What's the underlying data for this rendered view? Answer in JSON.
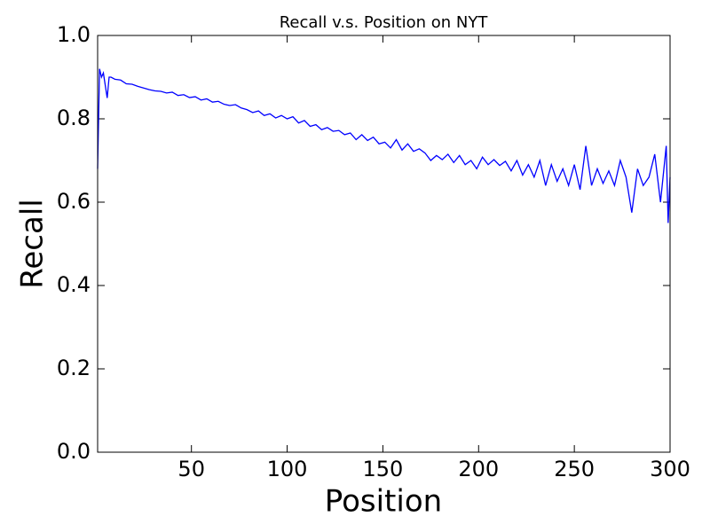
{
  "chart_data": {
    "type": "line",
    "title": "Recall v.s. Position on NYT",
    "x_label": "Position",
    "y_label": "Recall",
    "x": [
      1,
      2,
      3,
      4,
      5,
      6,
      7,
      8,
      10,
      13,
      16,
      19,
      22,
      25,
      28,
      31,
      34,
      37,
      40,
      43,
      46,
      49,
      52,
      55,
      58,
      61,
      64,
      67,
      70,
      73,
      76,
      79,
      82,
      85,
      88,
      91,
      94,
      97,
      100,
      103,
      106,
      109,
      112,
      115,
      118,
      121,
      124,
      127,
      130,
      133,
      136,
      139,
      142,
      145,
      148,
      151,
      154,
      157,
      160,
      163,
      166,
      169,
      172,
      175,
      178,
      181,
      184,
      187,
      190,
      193,
      196,
      199,
      202,
      205,
      208,
      211,
      214,
      217,
      220,
      223,
      226,
      229,
      232,
      235,
      238,
      241,
      244,
      247,
      250,
      253,
      256,
      259,
      262,
      265,
      268,
      271,
      274,
      277,
      280,
      283,
      286,
      289,
      292,
      295,
      298,
      299,
      300
    ],
    "series": [
      {
        "name": "Recall",
        "color": "#0000ff",
        "values": [
          0.68,
          0.92,
          0.9,
          0.91,
          0.88,
          0.85,
          0.9,
          0.9,
          0.895,
          0.893,
          0.884,
          0.883,
          0.878,
          0.874,
          0.87,
          0.867,
          0.866,
          0.862,
          0.864,
          0.856,
          0.858,
          0.851,
          0.853,
          0.845,
          0.848,
          0.84,
          0.842,
          0.835,
          0.832,
          0.834,
          0.826,
          0.822,
          0.815,
          0.819,
          0.808,
          0.812,
          0.802,
          0.808,
          0.8,
          0.805,
          0.79,
          0.796,
          0.782,
          0.786,
          0.774,
          0.779,
          0.77,
          0.772,
          0.762,
          0.766,
          0.75,
          0.762,
          0.748,
          0.756,
          0.74,
          0.744,
          0.73,
          0.75,
          0.725,
          0.74,
          0.722,
          0.728,
          0.718,
          0.7,
          0.712,
          0.702,
          0.715,
          0.695,
          0.712,
          0.69,
          0.7,
          0.68,
          0.708,
          0.69,
          0.702,
          0.688,
          0.698,
          0.675,
          0.7,
          0.665,
          0.69,
          0.66,
          0.7,
          0.64,
          0.69,
          0.65,
          0.68,
          0.64,
          0.69,
          0.63,
          0.735,
          0.64,
          0.68,
          0.645,
          0.675,
          0.64,
          0.7,
          0.66,
          0.575,
          0.68,
          0.64,
          0.66,
          0.715,
          0.6,
          0.735,
          0.55,
          0.66
        ]
      }
    ],
    "xlim": [
      1,
      300
    ],
    "xticks": [
      50,
      100,
      150,
      200,
      250,
      300
    ],
    "ylim": [
      0,
      1
    ],
    "yticks": [
      {
        "value": 0,
        "label": "0.0"
      },
      {
        "value": 0.2,
        "label": "0.2"
      },
      {
        "value": 0.4,
        "label": "0.4"
      },
      {
        "value": 0.6,
        "label": "0.6"
      },
      {
        "value": 0.8,
        "label": "0.8"
      },
      {
        "value": 1,
        "label": "1.0"
      }
    ],
    "grid": false
  }
}
